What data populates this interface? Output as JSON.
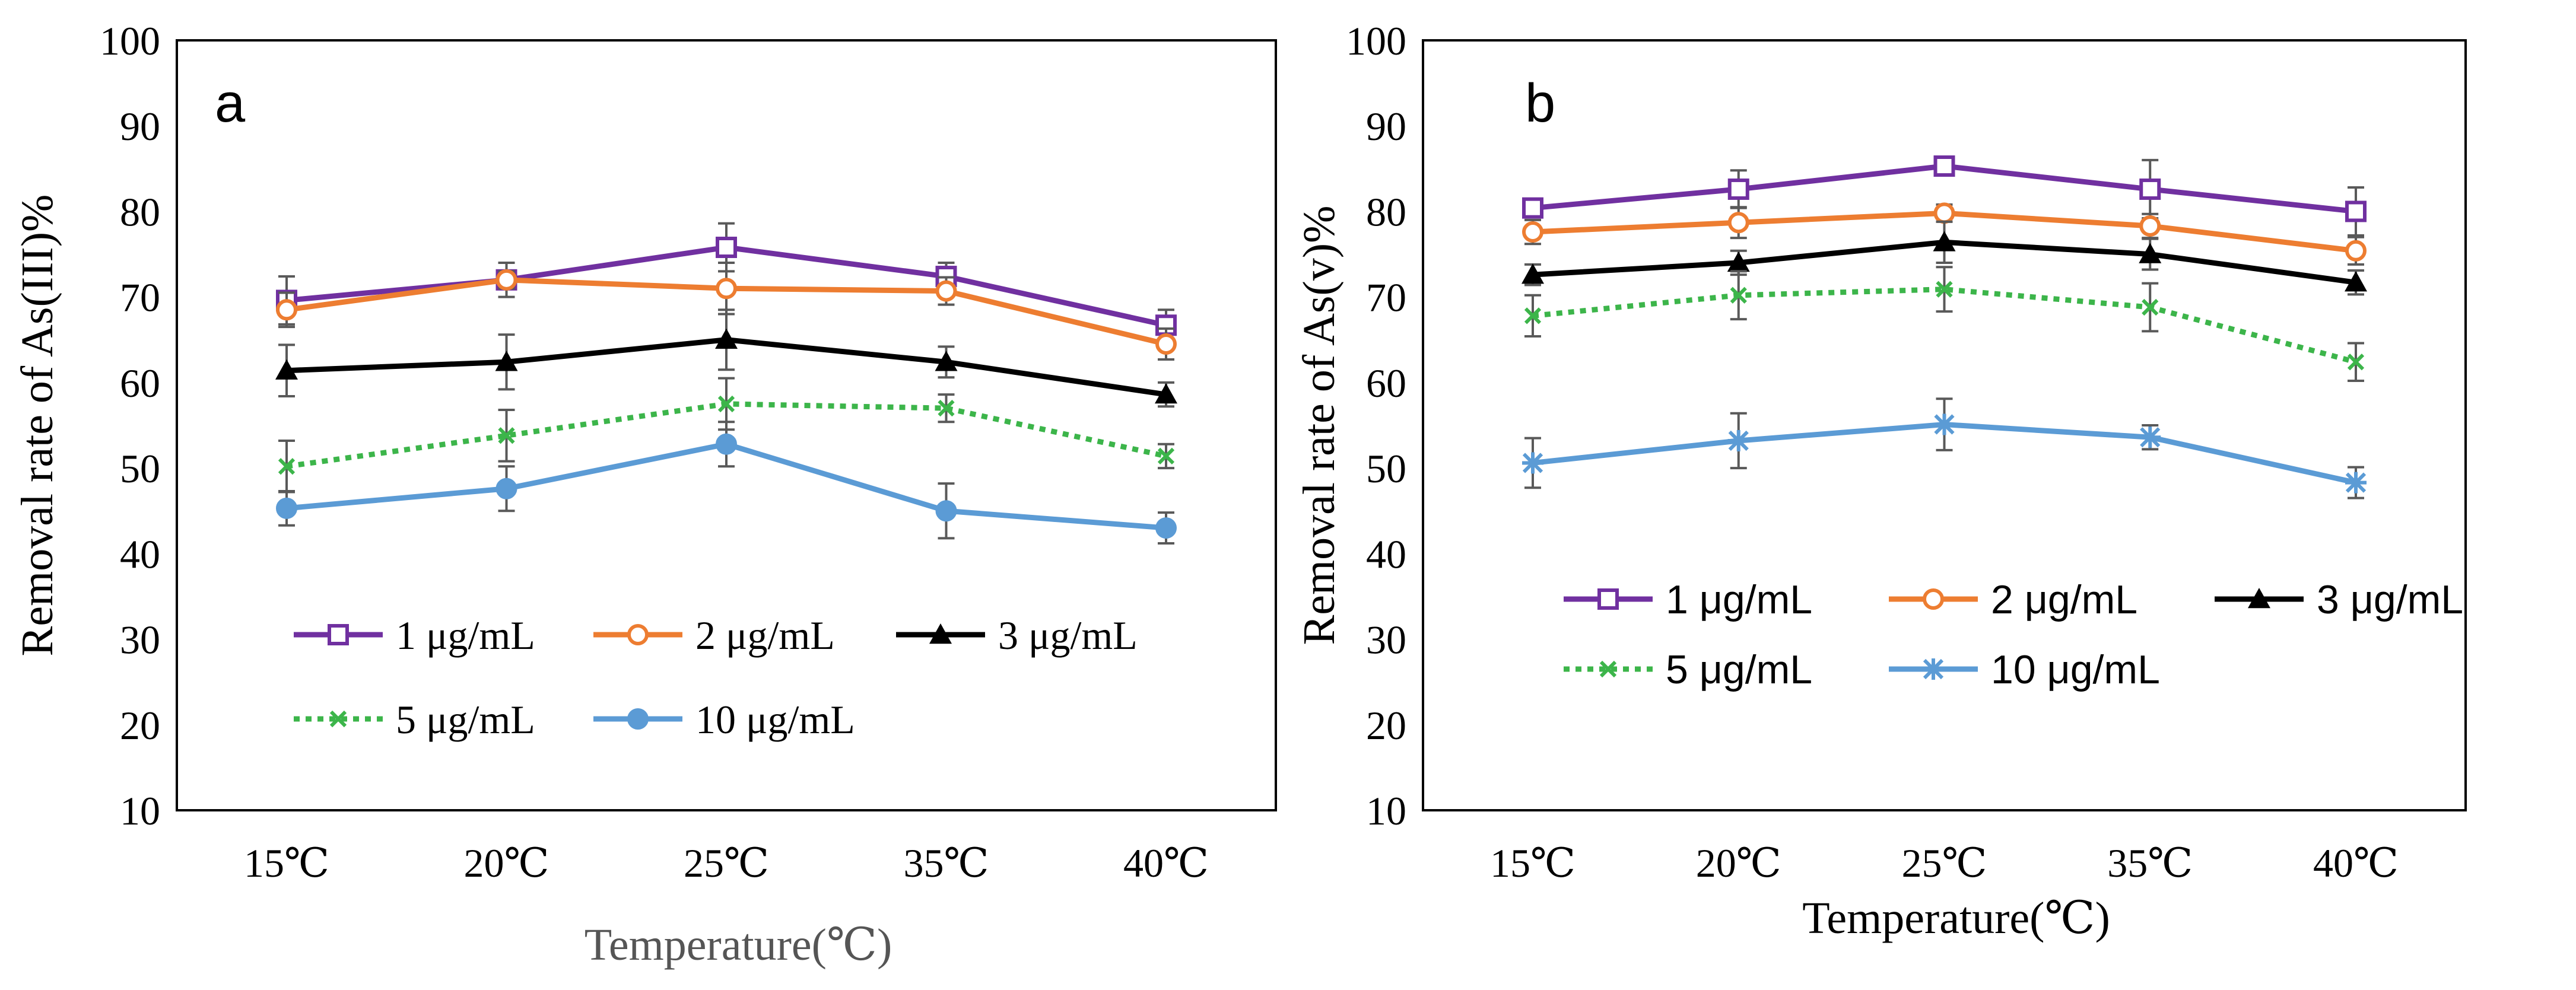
{
  "colors": {
    "c1": "#7030A0",
    "c2": "#ED7D31",
    "c3": "#000000",
    "c5": "#3CB54A",
    "c10": "#5B9BD5",
    "error_bar": "#595959",
    "axis": "#000000"
  },
  "chart_data": [
    {
      "type": "line",
      "panel_label": "a",
      "categories": [
        "15℃",
        "20℃",
        "25℃",
        "35℃",
        "40℃"
      ],
      "xlabel": "Temperature(℃)",
      "ylabel": "Removal rate of As(III)%",
      "ylim": [
        10,
        100
      ],
      "yticks": [
        "10",
        "20",
        "30",
        "40",
        "50",
        "60",
        "70",
        "80",
        "90",
        "100"
      ],
      "legend_position": "bottom-inside",
      "series": [
        {
          "name": "1 μg/mL",
          "color_key": "c1",
          "marker": "square-open",
          "dash": false,
          "values": [
            69.6,
            72.0,
            75.8,
            72.4,
            66.7
          ],
          "errors": [
            2.8,
            2.0,
            2.8,
            1.6,
            1.8
          ]
        },
        {
          "name": "2 μg/mL",
          "color_key": "c2",
          "marker": "circle-open",
          "dash": false,
          "values": [
            68.5,
            72.0,
            71.0,
            70.7,
            64.5
          ],
          "errors": [
            2.0,
            1.0,
            3.0,
            1.6,
            1.8
          ]
        },
        {
          "name": "3 μg/mL",
          "color_key": "c3",
          "marker": "triangle",
          "dash": false,
          "values": [
            61.4,
            62.4,
            65.0,
            62.4,
            58.6
          ],
          "errors": [
            3.0,
            3.2,
            3.5,
            1.8,
            1.4
          ]
        },
        {
          "name": "5 μg/mL",
          "color_key": "c5",
          "marker": "cross",
          "dash": true,
          "values": [
            50.2,
            53.8,
            57.5,
            57.0,
            51.4
          ],
          "errors": [
            3.0,
            3.0,
            3.0,
            1.6,
            1.4
          ]
        },
        {
          "name": "10 μg/mL",
          "color_key": "c10",
          "marker": "circle",
          "dash": false,
          "values": [
            45.3,
            47.6,
            52.8,
            45.0,
            43.0
          ],
          "errors": [
            2.0,
            2.6,
            2.6,
            3.2,
            1.8
          ]
        }
      ]
    },
    {
      "type": "line",
      "panel_label": "b",
      "categories": [
        "15℃",
        "20℃",
        "25℃",
        "35℃",
        "40℃"
      ],
      "xlabel": "Temperature(℃)",
      "ylabel": "Removal rate of As(v)%",
      "ylim": [
        10,
        100
      ],
      "yticks": [
        "10",
        "20",
        "30",
        "40",
        "50",
        "60",
        "70",
        "80",
        "90",
        "100"
      ],
      "legend_position": "lower-middle-inside",
      "series": [
        {
          "name": "1 μg/mL",
          "color_key": "c1",
          "marker": "square-open",
          "dash": false,
          "values": [
            80.4,
            82.6,
            85.3,
            82.6,
            80.0
          ],
          "errors": [
            1.0,
            2.2,
            1.0,
            3.4,
            2.8
          ]
        },
        {
          "name": "2 μg/mL",
          "color_key": "c2",
          "marker": "circle-open",
          "dash": false,
          "values": [
            77.6,
            78.7,
            79.8,
            78.3,
            75.4
          ],
          "errors": [
            1.4,
            1.8,
            1.0,
            1.4,
            1.6
          ]
        },
        {
          "name": "3 μg/mL",
          "color_key": "c3",
          "marker": "triangle",
          "dash": false,
          "values": [
            72.6,
            74.0,
            76.4,
            75.0,
            71.7
          ],
          "errors": [
            1.2,
            1.4,
            2.4,
            1.8,
            1.4
          ]
        },
        {
          "name": "5 μg/mL",
          "color_key": "c5",
          "marker": "cross",
          "dash": true,
          "values": [
            67.8,
            70.2,
            70.9,
            68.8,
            62.4
          ],
          "errors": [
            2.4,
            2.8,
            2.6,
            2.8,
            2.2
          ]
        },
        {
          "name": "10 μg/mL",
          "color_key": "c10",
          "marker": "star",
          "dash": false,
          "values": [
            50.6,
            53.2,
            55.1,
            53.6,
            48.3
          ],
          "errors": [
            2.9,
            3.2,
            3.0,
            1.4,
            1.8
          ]
        }
      ]
    }
  ]
}
